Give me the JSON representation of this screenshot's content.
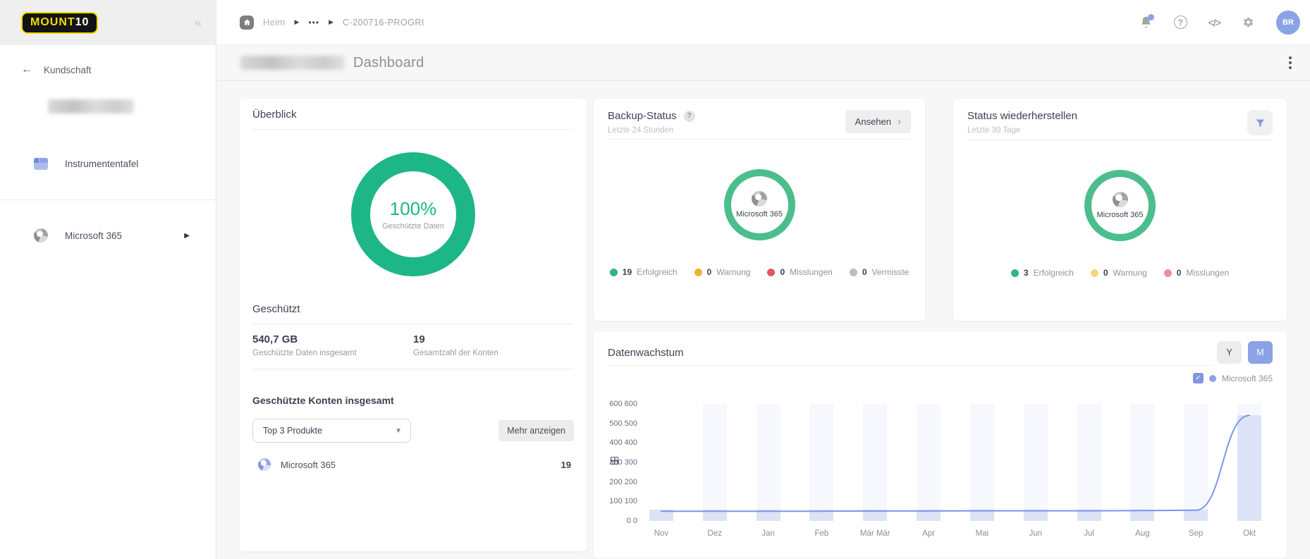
{
  "brand": {
    "name_left": "MOUNT",
    "name_right": "10",
    "collapse_icon": "«"
  },
  "sidebar": {
    "back": {
      "arrow": "←",
      "label": "Kundschaft"
    },
    "nav": [
      {
        "label": "Instrumententafel"
      },
      {
        "label": "Microsoft 365",
        "expand_icon": "▶"
      }
    ]
  },
  "topbar": {
    "breadcrumb": {
      "home_label": "Heim",
      "sep": "▶",
      "ellipsis": "•••",
      "current": "C-200716-PROGRI"
    },
    "help_icon_text": "?",
    "code_icon_text": "</>",
    "avatar_initials": "BR"
  },
  "page_header": {
    "title": "Dashboard"
  },
  "cards": {
    "overview": {
      "title": "Überblick",
      "donut_percent": "100%",
      "donut_label": "Geschützte Daten",
      "protected": {
        "title": "Geschützt",
        "stats": [
          {
            "value": "540,7 GB",
            "label": "Geschützte Daten insgesamt"
          },
          {
            "value": "19",
            "label": "Gesamtzahl der Konten"
          }
        ]
      },
      "accounts": {
        "title": "Geschützte Konten insgesamt",
        "dropdown_value": "Top 3 Produkte",
        "more_label": "Mehr anzeigen",
        "rows": [
          {
            "label": "Microsoft 365",
            "value": "19"
          }
        ]
      }
    },
    "backup": {
      "title": "Backup-Status",
      "subtitle": "Letzte 24 Stunden",
      "action_label": "Ansehen",
      "action_chevron": "›",
      "donut_center": "Microsoft 365",
      "legend": [
        {
          "count": "19",
          "label": "Erfolgreich",
          "color": "#35b386"
        },
        {
          "count": "0",
          "label": "Warnung",
          "color": "#eeb135"
        },
        {
          "count": "0",
          "label": "Misslungen",
          "color": "#e05666"
        },
        {
          "count": "0",
          "label": "Vermisste",
          "color": "#bcbcbc"
        }
      ]
    },
    "restore": {
      "title": "Status wiederherstellen",
      "subtitle": "Letzte 30 Tage",
      "donut_center": "Microsoft 365",
      "legend": [
        {
          "count": "3",
          "label": "Erfolgreich",
          "color": "#35b386"
        },
        {
          "count": "0",
          "label": "Warnung",
          "color": "#f5d783"
        },
        {
          "count": "0",
          "label": "Misslungen",
          "color": "#e9919a"
        }
      ]
    },
    "growth": {
      "title": "Datenwachstum",
      "toggle": {
        "year_label": "Y",
        "month_label": "M",
        "active": "M"
      },
      "series_toggle_label": "Microsoft 365",
      "checkbox_checked": "✓"
    }
  },
  "chart_data": {
    "type": "bar",
    "title": "Datenwachstum",
    "categories": [
      "Nov",
      "Dez",
      "Jan",
      "Feb",
      "Mär Mär",
      "Apr",
      "Mai",
      "Jun",
      "Jul",
      "Aug",
      "Sep",
      "Okt"
    ],
    "series": [
      {
        "name": "Microsoft 365 (Balken)",
        "type": "bar",
        "values": [
          57,
          57,
          57,
          57,
          57,
          57,
          57,
          57,
          57,
          57,
          57,
          541
        ]
      },
      {
        "name": "Microsoft 365 (Linie)",
        "type": "line",
        "values": [
          50,
          50,
          50,
          50,
          51,
          51,
          52,
          52,
          52,
          53,
          55,
          541
        ]
      }
    ],
    "background_bands": [
      false,
      true,
      true,
      true,
      true,
      true,
      true,
      true,
      true,
      true,
      true,
      true
    ],
    "ylim": [
      0,
      600
    ],
    "ytick_labels": [
      "600 600",
      "500 500",
      "400 400",
      "300 300",
      "200 200",
      "100 100",
      "0 0"
    ],
    "legend": [
      "Microsoft 365"
    ],
    "grid": false,
    "legend_position": "top-right",
    "colors": {
      "bar": "#dce3f7",
      "band": "#f6f8fd",
      "line": "#7b96e8"
    }
  }
}
